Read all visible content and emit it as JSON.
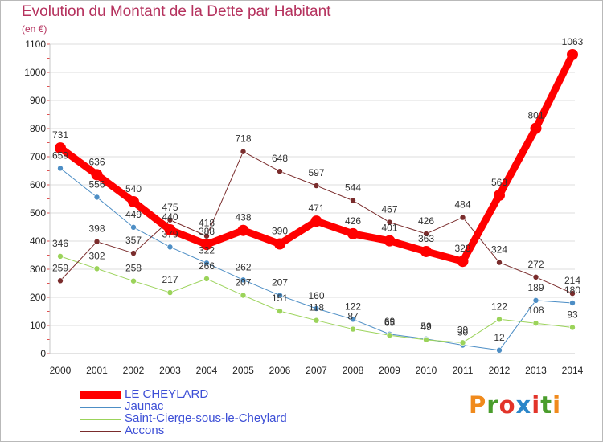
{
  "title": "Evolution du Montant de la Dette par Habitant",
  "subtitle": "(en €)",
  "logo": "Proxiti",
  "colors": {
    "title": "#b5325e",
    "axis": "#c7c7c7",
    "grid": "#dddddd",
    "legend_text": "#3d4fd6",
    "logo": [
      "#f08a1c",
      "#4a9d2c",
      "#e2342a",
      "#2b86c9",
      "#e2342a",
      "#4a9d2c",
      "#f08a1c"
    ]
  },
  "chart_data": {
    "type": "line",
    "title": "Evolution du Montant de la Dette par Habitant",
    "subtitle": "(en €)",
    "xlabel": "",
    "ylabel": "",
    "ylim": [
      0,
      1100
    ],
    "yticks": [
      0,
      100,
      200,
      300,
      400,
      500,
      600,
      700,
      800,
      900,
      1000,
      1100
    ],
    "grid": true,
    "legend": "bottom-left",
    "x": [
      "2000",
      "2001",
      "2002",
      "2003",
      "2004",
      "2005",
      "2006",
      "2007",
      "2008",
      "2009",
      "2010",
      "2011",
      "2012",
      "2013",
      "2014"
    ],
    "series": [
      {
        "name": "LE CHEYLARD",
        "color": "#ff0000",
        "width": 9,
        "marker": 7,
        "values": [
          731,
          636,
          540,
          440,
          388,
          438,
          390,
          471,
          426,
          401,
          363,
          328,
          563,
          801,
          1063
        ],
        "labels": [
          "731",
          "636",
          "540",
          "440",
          "388",
          "438",
          "390",
          "471",
          "426",
          "401",
          "363",
          "328",
          "563",
          "801",
          "1063"
        ]
      },
      {
        "name": "Jaunac",
        "color": "#4d8ec5",
        "width": 1,
        "marker": 3.5,
        "values": [
          659,
          556,
          449,
          379,
          322,
          262,
          207,
          160,
          122,
          69,
          52,
          30,
          12,
          189,
          180
        ],
        "labels": [
          "659",
          "556",
          "449",
          "379",
          "322",
          "262",
          "207",
          "160",
          "122",
          "69",
          "52",
          "30",
          "12",
          "189",
          "180"
        ]
      },
      {
        "name": "Saint-Cierge-sous-le-Cheylard",
        "color": "#9bd35a",
        "width": 1,
        "marker": 3.5,
        "values": [
          346,
          302,
          258,
          217,
          266,
          207,
          151,
          118,
          87,
          65,
          49,
          39,
          122,
          108,
          93
        ],
        "labels": [
          "346",
          "302",
          "258",
          "217",
          "266",
          "207",
          "151",
          "118",
          "87",
          "65",
          "49",
          "39",
          "122",
          "108",
          "93"
        ]
      },
      {
        "name": "Accons",
        "color": "#7a2c2c",
        "width": 1,
        "marker": 3.5,
        "values": [
          259,
          398,
          357,
          475,
          418,
          718,
          648,
          597,
          544,
          467,
          426,
          484,
          324,
          272,
          214
        ],
        "labels": [
          "259",
          "398",
          "357",
          "475",
          "418",
          "718",
          "648",
          "597",
          "544",
          "467",
          "426",
          "484",
          "324",
          "272",
          "214"
        ]
      }
    ]
  }
}
